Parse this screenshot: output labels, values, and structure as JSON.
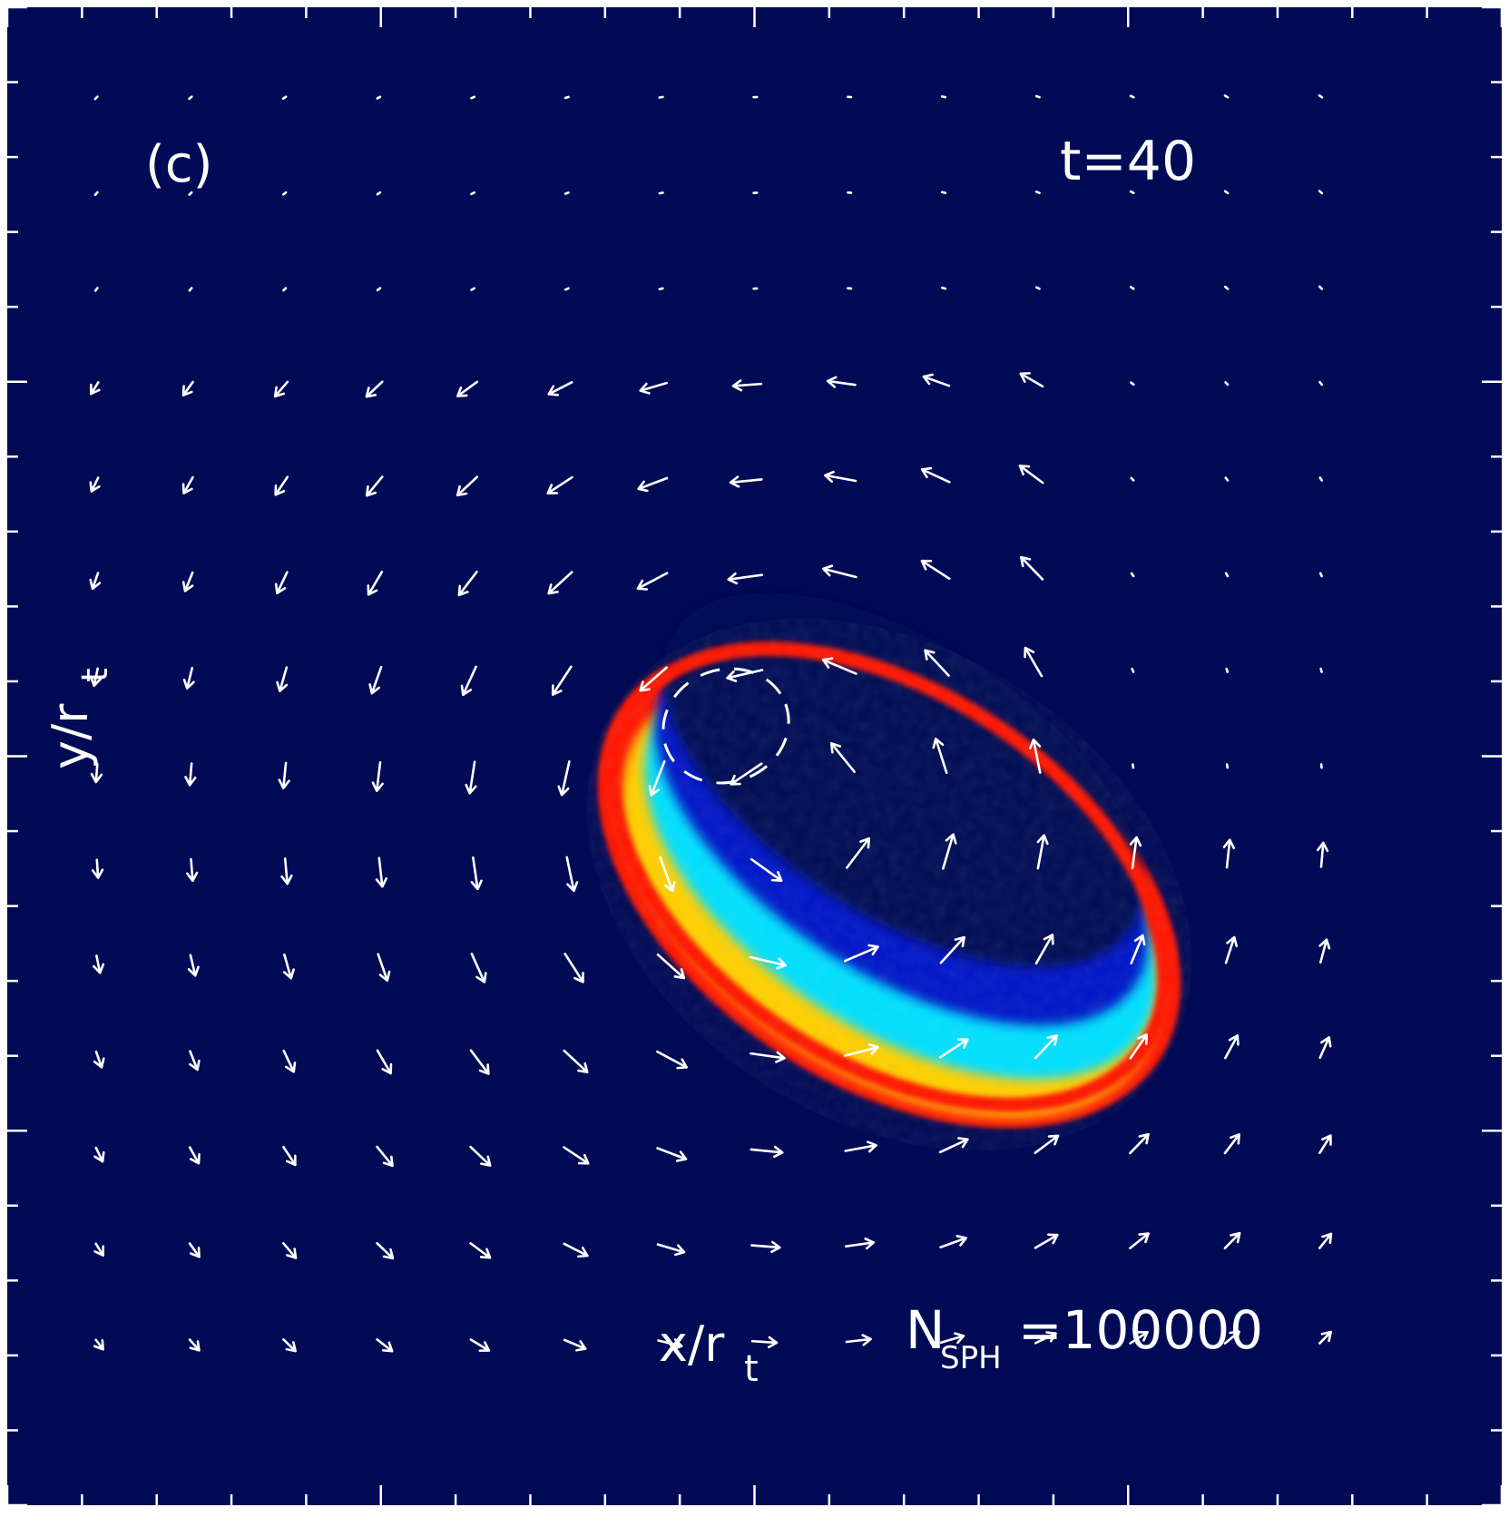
{
  "panel": {
    "panel_label": "(c)",
    "time_label": "t=40",
    "x_label": "x/r",
    "x_label_sub": "t",
    "y_label": "y/r",
    "y_label_sub": "t",
    "particles_label_main": "N",
    "particles_label_sub": "SPH",
    "particles_value": "=100000"
  },
  "colors": {
    "background": "#000a55",
    "arrow": "#ffffff",
    "ring_outer": "#ff1800",
    "ring_mid": "#ffd000",
    "ring_inner": "#00e0ff",
    "deep_blue": "#0012c8"
  },
  "vector_field": {
    "columns": 14,
    "rows": 14,
    "description_free": true
  }
}
